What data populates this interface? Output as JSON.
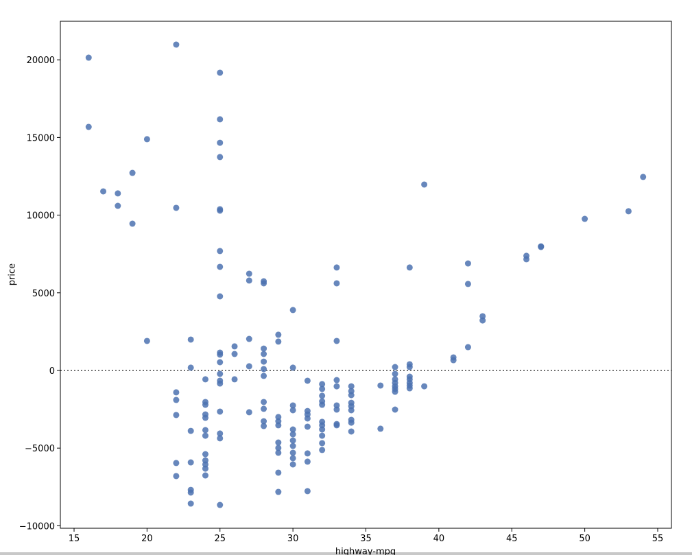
{
  "chart_data": {
    "type": "scatter",
    "xlabel": "highway-mpg",
    "ylabel": "price",
    "color": "#4c72b0",
    "hline": 0,
    "xlim": [
      14.06,
      55.94
    ],
    "ylim": [
      -10159,
      22482
    ],
    "xticks": [
      15,
      20,
      25,
      30,
      35,
      40,
      45,
      50,
      55
    ],
    "yticks": [
      {
        "value": -10000,
        "label": "−10000"
      },
      {
        "value": -5000,
        "label": "−5000"
      },
      0,
      5000,
      10000,
      15000,
      20000
    ],
    "x": [
      16,
      16,
      17,
      18,
      18,
      19,
      19,
      20,
      20,
      22,
      22,
      22,
      22,
      22,
      22,
      22,
      23,
      23,
      23,
      23,
      23,
      23,
      23,
      24,
      24,
      24,
      24,
      24,
      24,
      24,
      24,
      24,
      24,
      24,
      24,
      25,
      25,
      25,
      25,
      25,
      25,
      25,
      25,
      25,
      25,
      25,
      25,
      25,
      25,
      25,
      25,
      25,
      25,
      25,
      26,
      26,
      26,
      27,
      27,
      27,
      27,
      27,
      28,
      28,
      28,
      28,
      28,
      28,
      28,
      28,
      28,
      28,
      28,
      29,
      29,
      29,
      29,
      29,
      29,
      29,
      29,
      29,
      29,
      30,
      30,
      30,
      30,
      30,
      30,
      30,
      30,
      30,
      30,
      30,
      31,
      31,
      31,
      31,
      31,
      31,
      31,
      31,
      32,
      32,
      32,
      32,
      32,
      32,
      32,
      32,
      32,
      32,
      32,
      33,
      33,
      33,
      33,
      33,
      33,
      33,
      33,
      33,
      34,
      34,
      34,
      34,
      34,
      34,
      34,
      34,
      34,
      36,
      36,
      37,
      37,
      37,
      37,
      37,
      37,
      37,
      37,
      38,
      38,
      38,
      38,
      38,
      38,
      38,
      38,
      39,
      39,
      41,
      41,
      42,
      42,
      42,
      43,
      43,
      46,
      46,
      47,
      47,
      50,
      53,
      54
    ],
    "values": [
      20140,
      15680,
      11530,
      11400,
      10600,
      12720,
      9450,
      14890,
      1900,
      20980,
      10470,
      -1410,
      -1900,
      -2870,
      -5960,
      -6800,
      1990,
      180,
      -3890,
      -5920,
      -7690,
      -7860,
      -8570,
      -570,
      -2030,
      -2210,
      -2830,
      -3050,
      -3840,
      -4200,
      -5390,
      -5790,
      -6050,
      -6320,
      -6760,
      19170,
      16170,
      14660,
      13740,
      10380,
      10290,
      7690,
      6670,
      4770,
      1150,
      1020,
      530,
      -220,
      -660,
      -840,
      -2650,
      -4060,
      -4370,
      -8660,
      1550,
      1060,
      -570,
      6230,
      5790,
      2030,
      270,
      -2690,
      5740,
      5610,
      1410,
      1060,
      570,
      90,
      -350,
      -2030,
      -2470,
      -3270,
      -3580,
      2300,
      1860,
      -3000,
      -3270,
      -3530,
      -4640,
      -4990,
      -5300,
      -6580,
      -7820,
      3890,
      180,
      -2250,
      -2560,
      -3800,
      -4110,
      -4510,
      -4860,
      -5300,
      -5650,
      -6050,
      -660,
      -2610,
      -2830,
      -3090,
      -3620,
      -5340,
      -5870,
      -7770,
      -880,
      -1190,
      -1630,
      -1990,
      -2210,
      -3310,
      -3530,
      -3800,
      -4200,
      -4680,
      -5120,
      6630,
      5610,
      1900,
      -620,
      -1020,
      -2250,
      -2520,
      -3450,
      -3530,
      -1020,
      -1330,
      -1590,
      -2080,
      -2300,
      -2560,
      -3180,
      -3360,
      -3930,
      -970,
      -3750,
      220,
      -220,
      -570,
      -800,
      -1020,
      -1190,
      -1370,
      -2520,
      6630,
      400,
      220,
      -400,
      -570,
      -800,
      -970,
      -1150,
      11970,
      -1020,
      840,
      660,
      6890,
      5570,
      1500,
      3490,
      3220,
      7380,
      7160,
      7990,
      7950,
      9760,
      10250,
      12460
    ]
  }
}
